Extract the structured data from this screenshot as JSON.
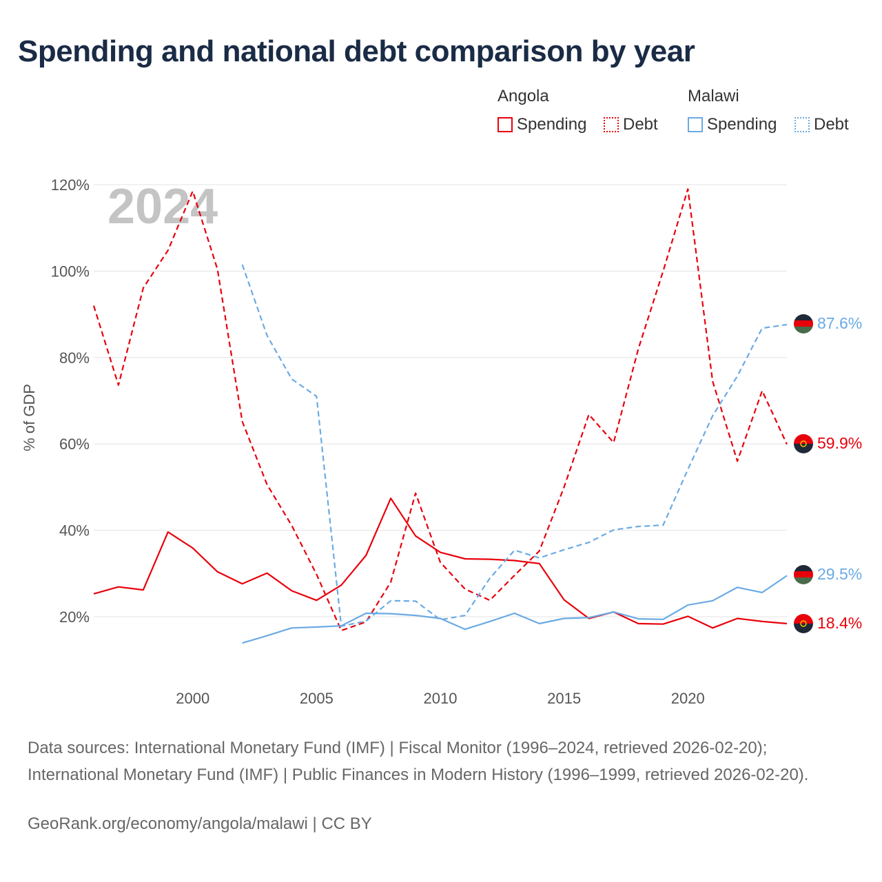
{
  "title": "Spending and national debt comparison by year",
  "legend": {
    "groups": [
      {
        "country": "Angola",
        "color": "#e8000b",
        "items": [
          {
            "label": "Spending",
            "style": "solid"
          },
          {
            "label": "Debt",
            "style": "dotted"
          }
        ]
      },
      {
        "country": "Malawi",
        "color": "#6aaae4",
        "items": [
          {
            "label": "Spending",
            "style": "solid"
          },
          {
            "label": "Debt",
            "style": "dotted"
          }
        ]
      }
    ]
  },
  "chart_data": {
    "type": "line",
    "title": "Spending and national debt comparison by year",
    "xlabel": "",
    "ylabel": "% of GDP",
    "xlim": [
      1996,
      2024
    ],
    "ylim": [
      5,
      125
    ],
    "x_ticks": [
      2000,
      2005,
      2010,
      2015,
      2020
    ],
    "x_tick_labels": [
      "2000",
      "2005",
      "2010",
      "2015",
      "2020"
    ],
    "y_ticks": [
      20,
      40,
      60,
      80,
      100,
      120
    ],
    "y_tick_labels": [
      "20%",
      "40%",
      "60%",
      "80%",
      "100%",
      "120%"
    ],
    "grid": true,
    "watermark_year": "2024",
    "series": [
      {
        "name": "Angola Spending",
        "country": "Angola",
        "metric": "Spending",
        "color": "#e8000b",
        "dash": "solid",
        "x": [
          1996,
          1997,
          1998,
          1999,
          2000,
          2001,
          2002,
          2003,
          2004,
          2005,
          2006,
          2007,
          2008,
          2009,
          2010,
          2011,
          2012,
          2013,
          2014,
          2015,
          2016,
          2017,
          2018,
          2019,
          2020,
          2021,
          2022,
          2023,
          2024
        ],
        "y": [
          25.3,
          26.9,
          26.2,
          39.6,
          35.9,
          30.4,
          27.6,
          30.1,
          26.0,
          23.8,
          27.3,
          34.2,
          47.4,
          38.7,
          34.9,
          33.4,
          33.3,
          33.0,
          32.3,
          23.9,
          19.6,
          21.1,
          18.4,
          18.3,
          20.1,
          17.4,
          19.6,
          18.9,
          18.4
        ],
        "end_label": "18.4%"
      },
      {
        "name": "Angola Debt",
        "country": "Angola",
        "metric": "Debt",
        "color": "#e8000b",
        "dash": "dashed",
        "x": [
          1996,
          1997,
          1998,
          1999,
          2000,
          2001,
          2002,
          2003,
          2004,
          2005,
          2006,
          2007,
          2008,
          2009,
          2010,
          2011,
          2012,
          2013,
          2014,
          2015,
          2016,
          2017,
          2018,
          2019,
          2020,
          2021,
          2022,
          2023,
          2024
        ],
        "y": [
          92.0,
          73.6,
          96.1,
          104.8,
          118.5,
          100.4,
          65.2,
          50.6,
          41.1,
          29.8,
          16.8,
          18.8,
          28.0,
          48.6,
          32.6,
          26.4,
          23.8,
          29.6,
          35.2,
          50.0,
          66.8,
          60.3,
          82.0,
          100.0,
          119.0,
          74.5,
          56.0,
          72.3,
          59.9
        ],
        "end_label": "59.9%"
      },
      {
        "name": "Malawi Spending",
        "country": "Malawi",
        "metric": "Spending",
        "color": "#6aaae4",
        "dash": "solid",
        "x": [
          2002,
          2003,
          2004,
          2005,
          2006,
          2007,
          2008,
          2009,
          2010,
          2011,
          2012,
          2013,
          2014,
          2015,
          2016,
          2017,
          2018,
          2019,
          2020,
          2021,
          2022,
          2023,
          2024
        ],
        "y": [
          13.9,
          15.6,
          17.4,
          17.6,
          17.9,
          20.8,
          20.7,
          20.3,
          19.6,
          17.1,
          18.9,
          20.8,
          18.4,
          19.6,
          19.8,
          21.1,
          19.5,
          19.4,
          22.7,
          23.7,
          26.8,
          25.6,
          29.5
        ],
        "end_label": "29.5%"
      },
      {
        "name": "Malawi Debt",
        "country": "Malawi",
        "metric": "Debt",
        "color": "#6aaae4",
        "dash": "dashed",
        "x": [
          2002,
          2003,
          2004,
          2005,
          2006,
          2007,
          2008,
          2009,
          2010,
          2011,
          2012,
          2013,
          2014,
          2015,
          2016,
          2017,
          2018,
          2019,
          2020,
          2021,
          2022,
          2023,
          2024
        ],
        "y": [
          101.5,
          85.1,
          75.0,
          71.0,
          17.8,
          19.0,
          23.7,
          23.6,
          19.3,
          20.3,
          28.9,
          35.4,
          33.6,
          35.5,
          37.2,
          40.1,
          40.9,
          41.2,
          54.1,
          66.5,
          75.7,
          86.8,
          87.6
        ],
        "end_label": "87.6%"
      }
    ]
  },
  "sources": "Data sources: International Monetary Fund (IMF) | Fiscal Monitor (1996–2024, retrieved 2026-02-20); International Monetary Fund (IMF) | Public Finances in Modern History (1996–1999, retrieved 2026-02-20).",
  "credit": "GeoRank.org/economy/angola/malawi | CC BY"
}
